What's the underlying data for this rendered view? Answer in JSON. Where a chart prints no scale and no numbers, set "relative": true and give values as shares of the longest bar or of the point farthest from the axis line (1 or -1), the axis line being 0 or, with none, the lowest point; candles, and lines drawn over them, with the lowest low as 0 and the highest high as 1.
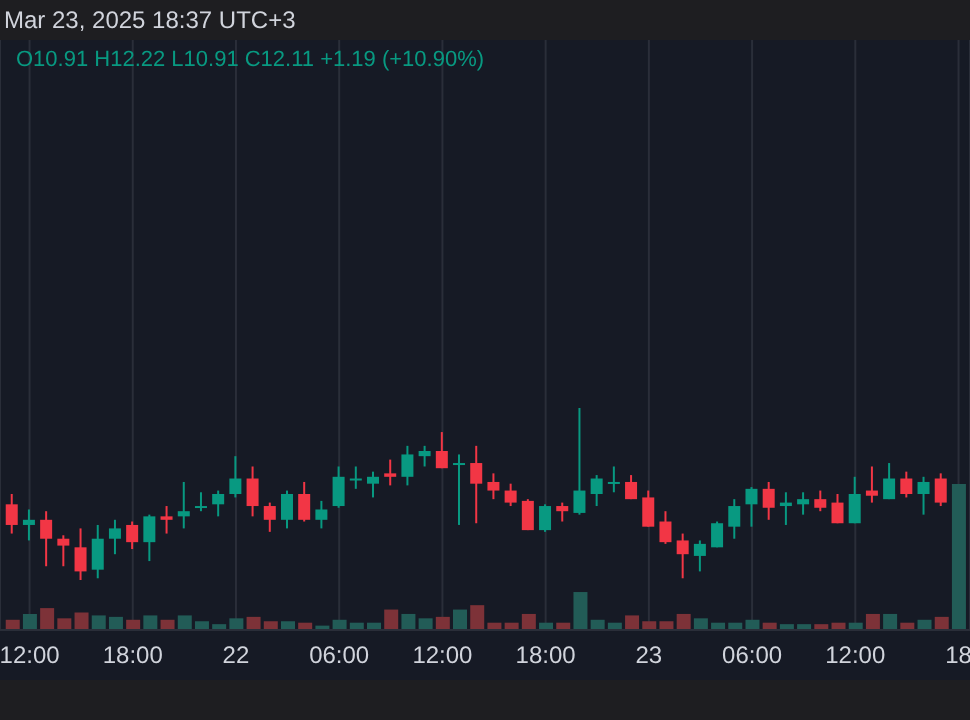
{
  "chart_data": [
    {
      "type": "candlestick",
      "title": "Mar 23, 2025 18:37 UTC+3",
      "annotations": [
        "O10.91 H12.22 L10.91 C12.11 +1.19 (+10.90%)"
      ],
      "relative": true,
      "xlim": [
        "2025-03-21T10:17",
        "2025-03-23T18:40"
      ],
      "x": [
        "2025-03-21T11:00",
        "2025-03-21T12:00",
        "2025-03-21T13:00",
        "2025-03-21T14:00",
        "2025-03-21T15:00",
        "2025-03-21T16:00",
        "2025-03-21T17:00",
        "2025-03-21T18:00",
        "2025-03-21T19:00",
        "2025-03-21T20:00",
        "2025-03-21T21:00",
        "2025-03-21T22:00",
        "2025-03-21T23:00",
        "2025-03-22T00:00",
        "2025-03-22T01:00",
        "2025-03-22T02:00",
        "2025-03-22T03:00",
        "2025-03-22T04:00",
        "2025-03-22T05:00",
        "2025-03-22T06:00",
        "2025-03-22T07:00",
        "2025-03-22T08:00",
        "2025-03-22T09:00",
        "2025-03-22T10:00",
        "2025-03-22T11:00",
        "2025-03-22T12:00",
        "2025-03-22T13:00",
        "2025-03-22T14:00",
        "2025-03-22T15:00",
        "2025-03-22T16:00",
        "2025-03-22T17:00",
        "2025-03-22T18:00",
        "2025-03-22T19:00",
        "2025-03-22T20:00",
        "2025-03-22T21:00",
        "2025-03-22T22:00",
        "2025-03-22T23:00",
        "2025-03-23T00:00",
        "2025-03-23T01:00",
        "2025-03-23T02:00",
        "2025-03-23T03:00",
        "2025-03-23T04:00",
        "2025-03-23T05:00",
        "2025-03-23T06:00",
        "2025-03-23T07:00",
        "2025-03-23T08:00",
        "2025-03-23T09:00",
        "2025-03-23T10:00",
        "2025-03-23T11:00",
        "2025-03-23T12:00",
        "2025-03-23T13:00",
        "2025-03-23T14:00",
        "2025-03-23T15:00",
        "2025-03-23T16:00",
        "2025-03-23T17:00"
      ],
      "ohlc": [
        [
          0.44,
          0.5,
          0.27,
          0.32
        ],
        [
          0.32,
          0.41,
          0.23,
          0.35
        ],
        [
          0.35,
          0.4,
          0.08,
          0.24
        ],
        [
          0.24,
          0.26,
          0.08,
          0.2
        ],
        [
          0.19,
          0.3,
          0,
          0.05
        ],
        [
          0.06,
          0.32,
          0.01,
          0.24
        ],
        [
          0.24,
          0.35,
          0.15,
          0.3
        ],
        [
          0.32,
          0.34,
          0.18,
          0.22
        ],
        [
          0.22,
          0.38,
          0.11,
          0.37
        ],
        [
          0.37,
          0.43,
          0.27,
          0.35
        ],
        [
          0.37,
          0.57,
          0.3,
          0.4
        ],
        [
          0.42,
          0.51,
          0.4,
          0.43
        ],
        [
          0.44,
          0.52,
          0.37,
          0.5
        ],
        [
          0.5,
          0.72,
          0.48,
          0.59
        ],
        [
          0.59,
          0.66,
          0.37,
          0.43
        ],
        [
          0.43,
          0.45,
          0.28,
          0.35
        ],
        [
          0.35,
          0.52,
          0.3,
          0.5
        ],
        [
          0.5,
          0.57,
          0.34,
          0.35
        ],
        [
          0.35,
          0.46,
          0.3,
          0.41
        ],
        [
          0.43,
          0.66,
          0.42,
          0.6
        ],
        [
          0.58,
          0.66,
          0.53,
          0.59
        ],
        [
          0.56,
          0.63,
          0.48,
          0.6
        ],
        [
          0.62,
          0.7,
          0.55,
          0.6
        ],
        [
          0.6,
          0.78,
          0.55,
          0.73
        ],
        [
          0.72,
          0.78,
          0.66,
          0.75
        ],
        [
          0.75,
          0.86,
          0.65,
          0.65
        ],
        [
          0.67,
          0.73,
          0.32,
          0.68
        ],
        [
          0.68,
          0.78,
          0.33,
          0.56
        ],
        [
          0.57,
          0.62,
          0.47,
          0.52
        ],
        [
          0.52,
          0.56,
          0.43,
          0.45
        ],
        [
          0.46,
          0.47,
          0.29,
          0.29
        ],
        [
          0.29,
          0.44,
          0.28,
          0.43
        ],
        [
          0.43,
          0.45,
          0.34,
          0.4
        ],
        [
          0.39,
          1,
          0.38,
          0.52
        ],
        [
          0.5,
          0.61,
          0.43,
          0.59
        ],
        [
          0.56,
          0.66,
          0.51,
          0.57
        ],
        [
          0.57,
          0.61,
          0.47,
          0.47
        ],
        [
          0.48,
          0.52,
          0.31,
          0.31
        ],
        [
          0.34,
          0.4,
          0.21,
          0.22
        ],
        [
          0.23,
          0.27,
          0.01,
          0.15
        ],
        [
          0.14,
          0.23,
          0.05,
          0.21
        ],
        [
          0.19,
          0.34,
          0.19,
          0.33
        ],
        [
          0.31,
          0.47,
          0.24,
          0.43
        ],
        [
          0.44,
          0.54,
          0.31,
          0.53
        ],
        [
          0.53,
          0.57,
          0.35,
          0.42
        ],
        [
          0.43,
          0.51,
          0.32,
          0.45
        ],
        [
          0.44,
          0.51,
          0.38,
          0.47
        ],
        [
          0.47,
          0.52,
          0.4,
          0.42
        ],
        [
          0.45,
          0.5,
          0.33,
          0.33
        ],
        [
          0.33,
          0.6,
          0.33,
          0.5
        ],
        [
          0.52,
          0.66,
          0.45,
          0.49
        ],
        [
          0.47,
          0.68,
          0.47,
          0.59
        ],
        [
          0.59,
          0.63,
          0.48,
          0.5
        ],
        [
          0.5,
          0.6,
          0.38,
          0.57
        ],
        [
          0.59,
          0.62,
          0.43,
          0.45
        ]
      ],
      "colors": [
        "#f23645",
        "#089981",
        "#f23645",
        "#f23645",
        "#f23645",
        "#089981",
        "#089981",
        "#f23645",
        "#089981",
        "#f23645",
        "#089981",
        "#089981",
        "#089981",
        "#089981",
        "#f23645",
        "#f23645",
        "#089981",
        "#f23645",
        "#089981",
        "#089981",
        "#089981",
        "#089981",
        "#f23645",
        "#089981",
        "#089981",
        "#f23645",
        "#089981",
        "#f23645",
        "#f23645",
        "#f23645",
        "#f23645",
        "#089981",
        "#f23645",
        "#089981",
        "#089981",
        "#089981",
        "#f23645",
        "#f23645",
        "#f23645",
        "#f23645",
        "#089981",
        "#089981",
        "#089981",
        "#089981",
        "#f23645",
        "#089981",
        "#089981",
        "#f23645",
        "#f23645",
        "#089981",
        "#f23645",
        "#089981",
        "#f23645",
        "#089981",
        "#f23645"
      ]
    },
    {
      "type": "bar",
      "relative": true,
      "grid": "x",
      "xlim": [
        "2025-03-21T10:17",
        "2025-03-23T18:40"
      ],
      "xticks": [
        {
          "value": "2025-03-21T12:00",
          "label": "12:00"
        },
        {
          "value": "2025-03-21T18:00",
          "label": "18:00"
        },
        {
          "value": "2025-03-22T00:00",
          "label": "22"
        },
        {
          "value": "2025-03-22T06:00",
          "label": "06:00"
        },
        {
          "value": "2025-03-22T12:00",
          "label": "12:00"
        },
        {
          "value": "2025-03-22T18:00",
          "label": "18:00"
        },
        {
          "value": "2025-03-23T00:00",
          "label": "23"
        },
        {
          "value": "2025-03-23T06:00",
          "label": "06:00"
        },
        {
          "value": "2025-03-23T12:00",
          "label": "12:00"
        },
        {
          "value": "2025-03-23T18:00",
          "label": "18"
        }
      ],
      "x": [
        "2025-03-21T11:00",
        "2025-03-21T12:00",
        "2025-03-21T13:00",
        "2025-03-21T14:00",
        "2025-03-21T15:00",
        "2025-03-21T16:00",
        "2025-03-21T17:00",
        "2025-03-21T18:00",
        "2025-03-21T19:00",
        "2025-03-21T20:00",
        "2025-03-21T21:00",
        "2025-03-21T22:00",
        "2025-03-21T23:00",
        "2025-03-22T00:00",
        "2025-03-22T01:00",
        "2025-03-22T02:00",
        "2025-03-22T03:00",
        "2025-03-22T04:00",
        "2025-03-22T05:00",
        "2025-03-22T06:00",
        "2025-03-22T07:00",
        "2025-03-22T08:00",
        "2025-03-22T09:00",
        "2025-03-22T10:00",
        "2025-03-22T11:00",
        "2025-03-22T12:00",
        "2025-03-22T13:00",
        "2025-03-22T14:00",
        "2025-03-22T15:00",
        "2025-03-22T16:00",
        "2025-03-22T17:00",
        "2025-03-22T18:00",
        "2025-03-22T19:00",
        "2025-03-22T20:00",
        "2025-03-22T21:00",
        "2025-03-22T22:00",
        "2025-03-22T23:00",
        "2025-03-23T00:00",
        "2025-03-23T01:00",
        "2025-03-23T02:00",
        "2025-03-23T03:00",
        "2025-03-23T04:00",
        "2025-03-23T05:00",
        "2025-03-23T06:00",
        "2025-03-23T07:00",
        "2025-03-23T08:00",
        "2025-03-23T09:00",
        "2025-03-23T10:00",
        "2025-03-23T11:00",
        "2025-03-23T12:00",
        "2025-03-23T13:00",
        "2025-03-23T14:00",
        "2025-03-23T15:00",
        "2025-03-23T16:00",
        "2025-03-23T17:00",
        "2025-03-23T18:00"
      ],
      "values": [
        0.07,
        0.11,
        0.15,
        0.08,
        0.12,
        0.1,
        0.09,
        0.07,
        0.1,
        0.07,
        0.1,
        0.06,
        0.04,
        0.08,
        0.09,
        0.06,
        0.06,
        0.05,
        0.03,
        0.07,
        0.05,
        0.05,
        0.14,
        0.11,
        0.08,
        0.09,
        0.14,
        0.17,
        0.05,
        0.05,
        0.11,
        0.05,
        0.05,
        0.26,
        0.07,
        0.05,
        0.1,
        0.06,
        0.06,
        0.11,
        0.08,
        0.05,
        0.05,
        0.07,
        0.05,
        0.04,
        0.04,
        0.04,
        0.05,
        0.05,
        0.11,
        0.11,
        0.05,
        0.07,
        0.09,
        1
      ],
      "colors": [
        "#7d3238",
        "#225c57",
        "#7d3238",
        "#7d3238",
        "#7d3238",
        "#225c57",
        "#225c57",
        "#7d3238",
        "#225c57",
        "#7d3238",
        "#225c57",
        "#225c57",
        "#225c57",
        "#225c57",
        "#7d3238",
        "#7d3238",
        "#225c57",
        "#7d3238",
        "#225c57",
        "#225c57",
        "#225c57",
        "#225c57",
        "#7d3238",
        "#225c57",
        "#225c57",
        "#7d3238",
        "#225c57",
        "#7d3238",
        "#7d3238",
        "#7d3238",
        "#7d3238",
        "#225c57",
        "#7d3238",
        "#225c57",
        "#225c57",
        "#225c57",
        "#7d3238",
        "#7d3238",
        "#7d3238",
        "#7d3238",
        "#225c57",
        "#225c57",
        "#225c57",
        "#225c57",
        "#7d3238",
        "#225c57",
        "#225c57",
        "#7d3238",
        "#7d3238",
        "#225c57",
        "#7d3238",
        "#225c57",
        "#7d3238",
        "#225c57",
        "#7d3238",
        "#225c57"
      ]
    }
  ]
}
